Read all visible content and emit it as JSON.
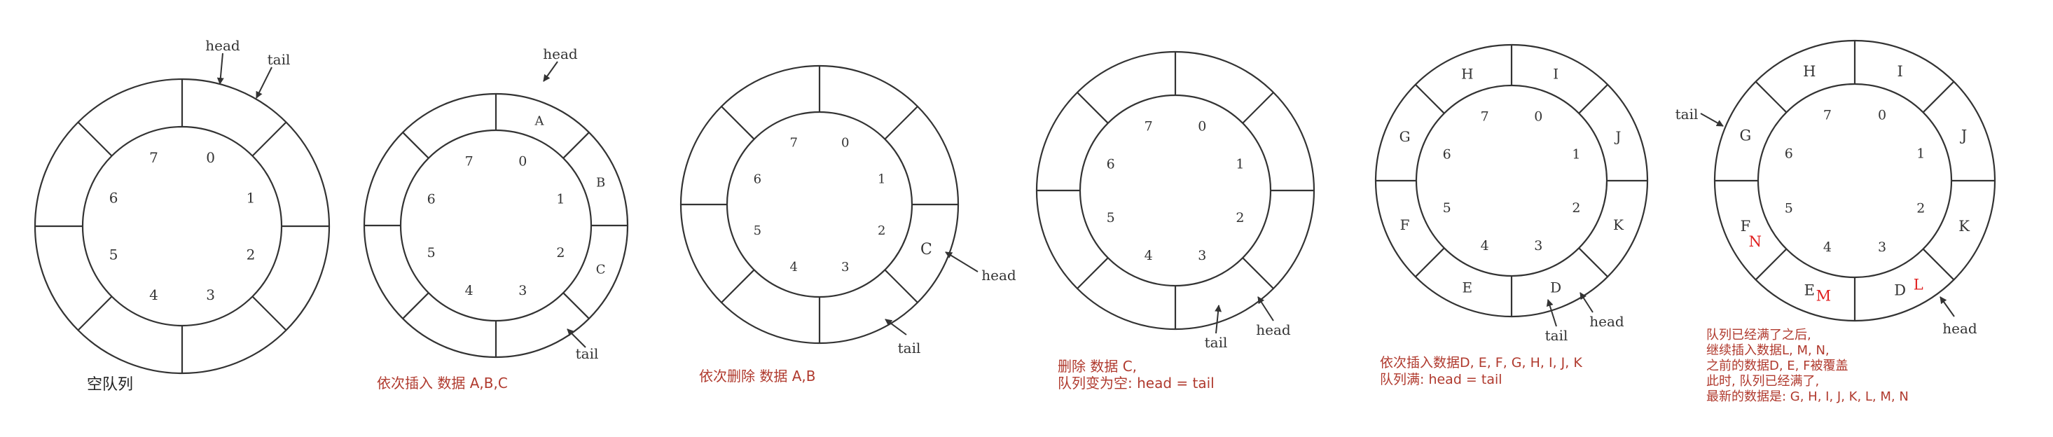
{
  "colors": {
    "ink": "#333333",
    "caption_red": "#b03a2e",
    "highlight_red": "#e02020",
    "caption_black": "#222222"
  },
  "diagrams": [
    {
      "index_labels": [
        "0",
        "1",
        "2",
        "3",
        "4",
        "5",
        "6",
        "7"
      ],
      "slot_letters": [
        "",
        "",
        "",
        "",
        "",
        "",
        "",
        ""
      ],
      "red_letters": [],
      "pointers": [
        {
          "name": "head",
          "label": "head"
        },
        {
          "name": "tail",
          "label": "tail"
        }
      ],
      "caption_lines": [
        "空队列"
      ],
      "caption_color": "black"
    },
    {
      "index_labels": [
        "0",
        "1",
        "2",
        "3",
        "4",
        "5",
        "6",
        "7"
      ],
      "slot_letters": [
        "A",
        "B",
        "C",
        "",
        "",
        "",
        "",
        ""
      ],
      "red_letters": [],
      "pointers": [
        {
          "name": "head",
          "label": "head"
        },
        {
          "name": "tail",
          "label": "tail"
        }
      ],
      "caption_lines": [
        "依次插入 数据 A,B,C"
      ],
      "caption_color": "red"
    },
    {
      "index_labels": [
        "0",
        "1",
        "2",
        "3",
        "4",
        "5",
        "6",
        "7"
      ],
      "slot_letters": [
        "",
        "",
        "C",
        "",
        "",
        "",
        "",
        ""
      ],
      "red_letters": [],
      "pointers": [
        {
          "name": "head",
          "label": "head"
        },
        {
          "name": "tail",
          "label": "tail"
        }
      ],
      "caption_lines": [
        "依次删除 数据 A,B"
      ],
      "caption_color": "red"
    },
    {
      "index_labels": [
        "0",
        "1",
        "2",
        "3",
        "4",
        "5",
        "6",
        "7"
      ],
      "slot_letters": [
        "",
        "",
        "",
        "",
        "",
        "",
        "",
        ""
      ],
      "red_letters": [],
      "pointers": [
        {
          "name": "tail",
          "label": "tail"
        },
        {
          "name": "head",
          "label": "head"
        }
      ],
      "caption_lines": [
        "删除 数据 C,",
        "队列变为空: head = tail"
      ],
      "caption_color": "red"
    },
    {
      "index_labels": [
        "0",
        "1",
        "2",
        "3",
        "4",
        "5",
        "6",
        "7"
      ],
      "slot_letters": [
        "I",
        "J",
        "K",
        "D",
        "E",
        "F",
        "G",
        "H"
      ],
      "red_letters": [],
      "pointers": [
        {
          "name": "tail",
          "label": "tail"
        },
        {
          "name": "head",
          "label": "head"
        }
      ],
      "caption_lines": [
        "依次插入数据D, E, F, G, H, I, J, K",
        "队列满: head = tail"
      ],
      "caption_color": "red"
    },
    {
      "index_labels": [
        "0",
        "1",
        "2",
        "3",
        "4",
        "5",
        "6",
        "7"
      ],
      "slot_letters": [
        "I",
        "J",
        "K",
        "D",
        "E",
        "F",
        "G",
        "H"
      ],
      "red_letters": [
        "L",
        "M",
        "N"
      ],
      "pointers": [
        {
          "name": "tail",
          "label": "tail"
        },
        {
          "name": "head",
          "label": "head"
        }
      ],
      "caption_lines": [
        "队列已经满了之后,",
        "继续插入数据L, M, N,",
        "之前的数据D, E, F被覆盖",
        "此时, 队列已经满了,",
        "最新的数据是: G, H, I, J, K, L, M, N"
      ],
      "caption_color": "red"
    }
  ]
}
